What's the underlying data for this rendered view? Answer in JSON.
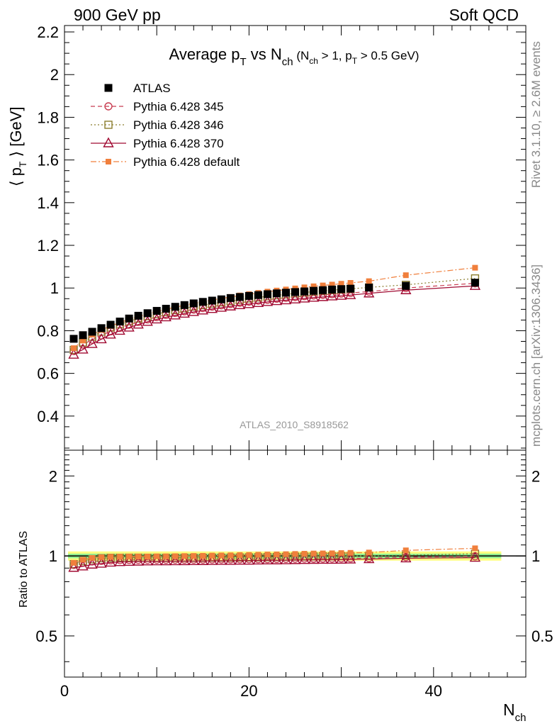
{
  "header": {
    "left": "900 GeV pp",
    "right": "Soft QCD"
  },
  "side_text": {
    "upper": "Rivet 3.1.10, ≥ 2.6M events",
    "lower": "mcplots.cern.ch [arXiv:1306.3436]"
  },
  "chart_data": {
    "type": "scatter",
    "title": {
      "main": "Average p",
      "main_sub": "T",
      "mid": " vs N",
      "mid_sub": "ch",
      "cut_open": " (N",
      "cut_sub1": "ch",
      "cut_mid": " > 1, p",
      "cut_sub2": "T",
      "cut_end": " > 0.5 GeV)"
    },
    "ylabel": {
      "pre": "⟨ p",
      "sub": "T",
      "post": " ⟩  [GeV]"
    },
    "xlabel": {
      "pre": "N",
      "sub": "ch"
    },
    "ratio_ylabel": "Ratio to ATLAS",
    "watermark": "ATLAS_2010_S8918562",
    "xlim": [
      0,
      50
    ],
    "ylim": [
      0.24,
      2.23
    ],
    "ratio_ylim": [
      0.35,
      2.5
    ],
    "ratio_scale": "log",
    "x_ticks": [
      "0",
      "20",
      "40"
    ],
    "x_tick_values": [
      0,
      20,
      40
    ],
    "y_ticks": [
      "0.4",
      "0.6",
      "0.8",
      "1",
      "1.2",
      "1.4",
      "1.6",
      "1.8",
      "2",
      "2.2"
    ],
    "y_tick_values": [
      0.4,
      0.6,
      0.8,
      1.0,
      1.2,
      1.4,
      1.6,
      1.8,
      2.0,
      2.2
    ],
    "ratio_ticks": [
      "0.5",
      "1",
      "2"
    ],
    "ratio_tick_values": [
      0.5,
      1,
      2
    ],
    "legend_position": "top-left",
    "bands": {
      "outer_color": "#ffff80",
      "inner_color": "#90ee90",
      "outer_halfwidth": 0.04,
      "inner_halfwidth": 0.02
    },
    "x": [
      1,
      2,
      3,
      4,
      5,
      6,
      7,
      8,
      9,
      10,
      11,
      12,
      13,
      14,
      15,
      16,
      17,
      18,
      19,
      20,
      21,
      22,
      23,
      24,
      25,
      26,
      27,
      28,
      29,
      30,
      31,
      33,
      37,
      44.5
    ],
    "series": [
      {
        "name": "ATLAS",
        "color": "#000000",
        "marker": "square-filled",
        "line": "none",
        "values": [
          0.762,
          0.779,
          0.795,
          0.812,
          0.828,
          0.843,
          0.857,
          0.87,
          0.882,
          0.893,
          0.903,
          0.912,
          0.92,
          0.928,
          0.935,
          0.941,
          0.947,
          0.953,
          0.958,
          0.963,
          0.967,
          0.971,
          0.975,
          0.978,
          0.981,
          0.984,
          0.987,
          0.99,
          0.993,
          0.995,
          0.997,
          1.002,
          1.01,
          1.025
        ]
      },
      {
        "name": "Pythia 6.428 345",
        "color": "#c83c50",
        "marker": "circle-open",
        "line": "dashed",
        "values": [
          0.705,
          0.735,
          0.758,
          0.778,
          0.797,
          0.813,
          0.828,
          0.841,
          0.853,
          0.864,
          0.874,
          0.883,
          0.891,
          0.899,
          0.906,
          0.913,
          0.919,
          0.925,
          0.931,
          0.936,
          0.941,
          0.945,
          0.95,
          0.954,
          0.958,
          0.962,
          0.965,
          0.968,
          0.971,
          0.974,
          0.977,
          0.983,
          1.0,
          1.022
        ]
      },
      {
        "name": "Pythia 6.428 346",
        "color": "#8b7d2e",
        "marker": "square-open",
        "line": "dotted",
        "values": [
          0.71,
          0.745,
          0.772,
          0.796,
          0.815,
          0.83,
          0.844,
          0.857,
          0.868,
          0.878,
          0.888,
          0.897,
          0.905,
          0.913,
          0.92,
          0.927,
          0.933,
          0.939,
          0.945,
          0.951,
          0.956,
          0.961,
          0.966,
          0.97,
          0.975,
          0.979,
          0.983,
          0.987,
          0.99,
          0.993,
          0.996,
          1.003,
          1.015,
          1.045
        ]
      },
      {
        "name": "Pythia 6.428 370",
        "color": "#a00a32",
        "marker": "triangle-open",
        "line": "solid",
        "values": [
          0.688,
          0.712,
          0.738,
          0.76,
          0.782,
          0.8,
          0.815,
          0.829,
          0.842,
          0.853,
          0.863,
          0.872,
          0.88,
          0.888,
          0.895,
          0.902,
          0.908,
          0.914,
          0.92,
          0.925,
          0.93,
          0.935,
          0.939,
          0.943,
          0.947,
          0.951,
          0.955,
          0.958,
          0.961,
          0.964,
          0.967,
          0.975,
          0.99,
          1.01
        ]
      },
      {
        "name": "Pythia 6.428 default",
        "color": "#f07f3c",
        "marker": "square-filled-small",
        "line": "dashdot",
        "values": [
          0.718,
          0.754,
          0.782,
          0.804,
          0.822,
          0.838,
          0.853,
          0.866,
          0.878,
          0.89,
          0.9,
          0.91,
          0.919,
          0.928,
          0.936,
          0.944,
          0.951,
          0.958,
          0.965,
          0.971,
          0.977,
          0.983,
          0.988,
          0.993,
          0.998,
          1.003,
          1.008,
          1.012,
          1.016,
          1.02,
          1.024,
          1.032,
          1.06,
          1.095
        ]
      }
    ]
  }
}
